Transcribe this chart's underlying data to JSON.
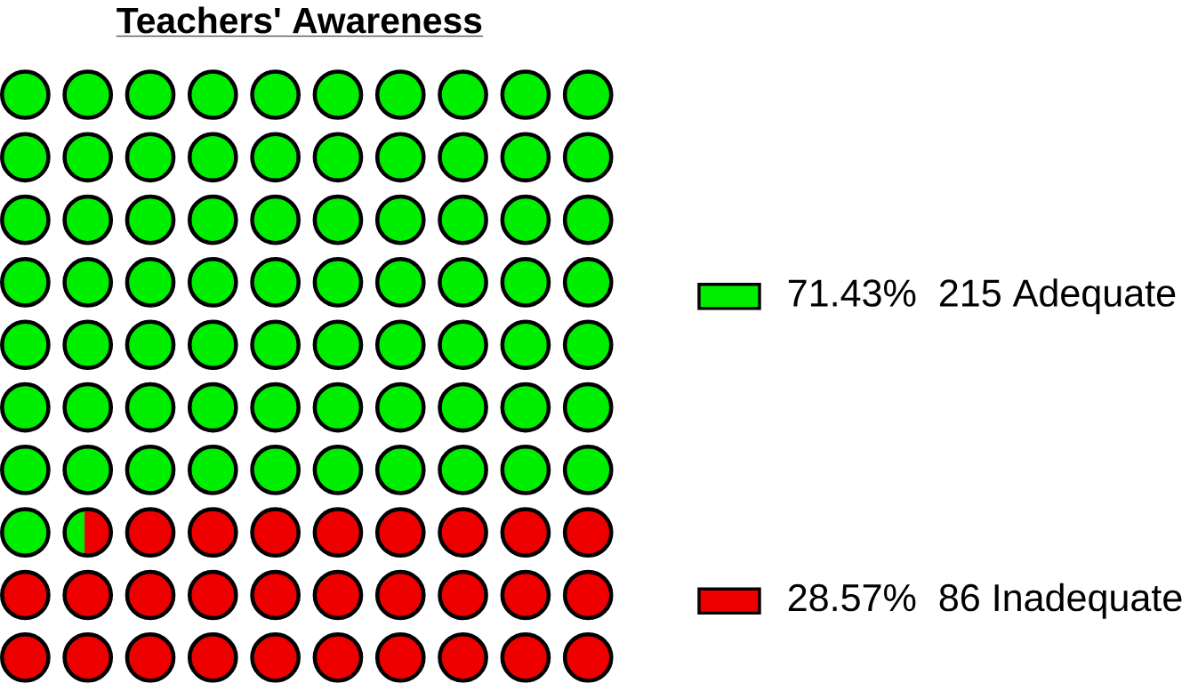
{
  "chart_data": {
    "type": "other",
    "title": "Teachers' Awareness",
    "categories": [
      "215 Adequate",
      "86 Inadequate"
    ],
    "values": [
      71.43,
      28.57
    ],
    "value_labels": [
      "71.43%",
      "28.57%"
    ],
    "colors": [
      "#00ee00",
      "#ee0000"
    ]
  }
}
